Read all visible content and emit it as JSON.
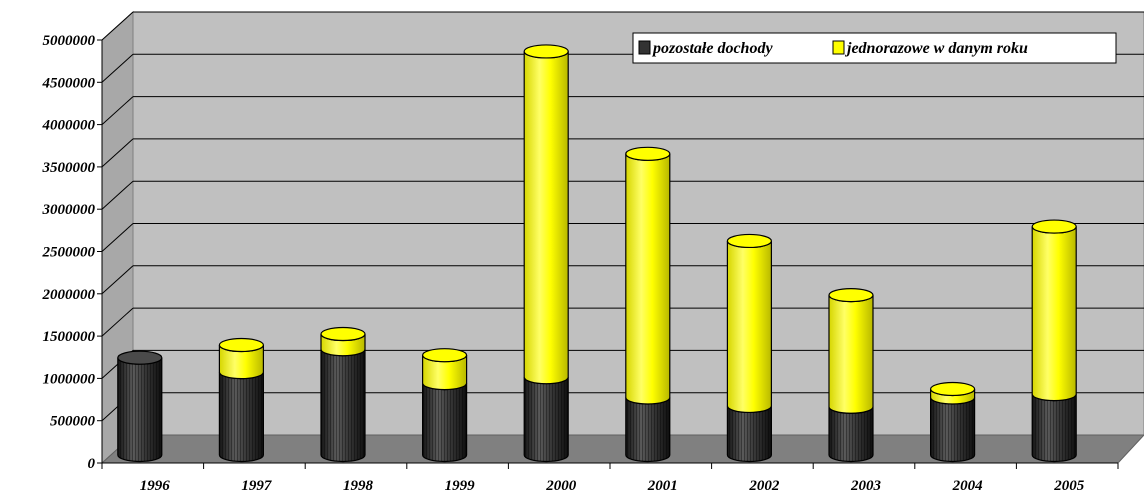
{
  "chart_data": {
    "type": "bar",
    "stacked": true,
    "style": "3d-cylinder",
    "title": "",
    "xlabel": "",
    "ylabel": "",
    "ylim": [
      0,
      5000000
    ],
    "y_ticks": [
      "0",
      "500000",
      "1000000",
      "1500000",
      "2000000",
      "2500000",
      "3000000",
      "3500000",
      "4000000",
      "4500000",
      "5000000"
    ],
    "categories": [
      "1996",
      "1997",
      "1998",
      "1999",
      "2000",
      "2001",
      "2002",
      "2003",
      "2004",
      "2005"
    ],
    "series": [
      {
        "name": "pozostałe dochody",
        "color": "#333333",
        "values": [
          1150000,
          980000,
          1250000,
          850000,
          920000,
          680000,
          580000,
          570000,
          680000,
          720000
        ]
      },
      {
        "name": "jednorazowe w danym roku",
        "color": "#ffff00",
        "values": [
          0,
          320000,
          180000,
          330000,
          3850000,
          2880000,
          1950000,
          1320000,
          100000,
          1980000
        ]
      }
    ],
    "grid": true,
    "legend_position": "top-right"
  }
}
